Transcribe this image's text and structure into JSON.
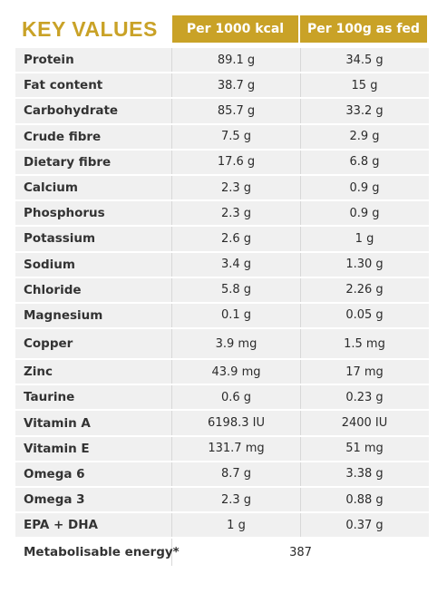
{
  "header": {
    "title": "KEY VALUES",
    "col1": "Per 1000 kcal",
    "col2": "Per 100g as fed"
  },
  "colors": {
    "accent": "#c9a227",
    "row_bg": "#f0f0f0"
  },
  "rows": [
    {
      "name": "Protein",
      "per_kcal": "89.1 g",
      "per_100g": "34.5 g"
    },
    {
      "name": "Fat content",
      "per_kcal": "38.7 g",
      "per_100g": "15 g"
    },
    {
      "name": "Carbohydrate",
      "per_kcal": "85.7 g",
      "per_100g": "33.2 g"
    },
    {
      "name": "Crude fibre",
      "per_kcal": "7.5 g",
      "per_100g": "2.9 g"
    },
    {
      "name": "Dietary fibre",
      "per_kcal": "17.6 g",
      "per_100g": "6.8 g"
    },
    {
      "name": "Calcium",
      "per_kcal": "2.3 g",
      "per_100g": "0.9 g"
    },
    {
      "name": "Phosphorus",
      "per_kcal": "2.3 g",
      "per_100g": "0.9 g"
    },
    {
      "name": "Potassium",
      "per_kcal": "2.6 g",
      "per_100g": "1 g"
    },
    {
      "name": "Sodium",
      "per_kcal": "3.4 g",
      "per_100g": "1.30 g"
    },
    {
      "name": "Chloride",
      "per_kcal": "5.8 g",
      "per_100g": "2.26 g"
    },
    {
      "name": "Magnesium",
      "per_kcal": "0.1 g",
      "per_100g": "0.05 g"
    },
    {
      "name": "Copper",
      "per_kcal": "3.9 mg",
      "per_100g": "1.5 mg"
    },
    {
      "name": "Zinc",
      "per_kcal": "43.9 mg",
      "per_100g": "17 mg"
    },
    {
      "name": "Taurine",
      "per_kcal": "0.6 g",
      "per_100g": "0.23 g"
    },
    {
      "name": "Vitamin A",
      "per_kcal": "6198.3 IU",
      "per_100g": "2400 IU"
    },
    {
      "name": "Vitamin E",
      "per_kcal": "131.7 mg",
      "per_100g": "51 mg"
    },
    {
      "name": "Omega 6",
      "per_kcal": "8.7 g",
      "per_100g": "3.38 g"
    },
    {
      "name": "Omega 3",
      "per_kcal": "2.3 g",
      "per_100g": "0.88 g"
    },
    {
      "name": "EPA + DHA",
      "per_kcal": "1 g",
      "per_100g": "0.37 g"
    }
  ],
  "energy": {
    "name": "Metabolisable energy*",
    "value": "387"
  }
}
